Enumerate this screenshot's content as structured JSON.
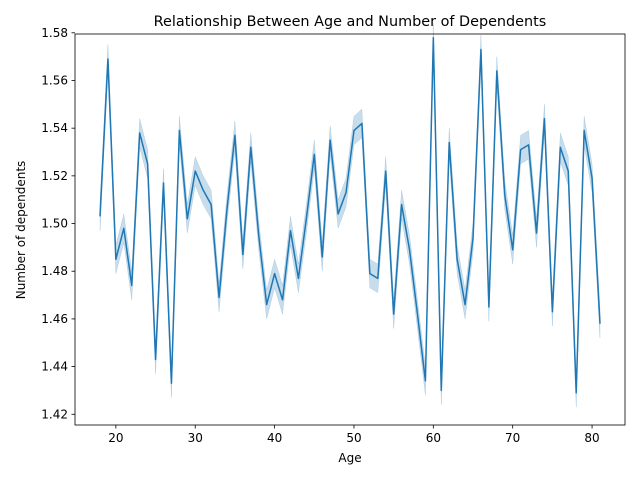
{
  "chart_data": {
    "type": "line",
    "title": "Relationship Between Age and Number of Dependents",
    "xlabel": "Age",
    "ylabel": "Number of dependents",
    "xlim": [
      14.85,
      84.15
    ],
    "ylim": [
      1.4155,
      1.5795
    ],
    "xticks": [
      20,
      30,
      40,
      50,
      60,
      70,
      80
    ],
    "yticks": [
      1.42,
      1.44,
      1.46,
      1.48,
      1.5,
      1.52,
      1.54,
      1.56,
      1.58
    ],
    "ytick_labels": [
      "1.42",
      "1.44",
      "1.46",
      "1.48",
      "1.50",
      "1.52",
      "1.54",
      "1.56",
      "1.58"
    ],
    "grid": false,
    "legend": "none",
    "line_color": "#1f77b4",
    "band_color": "#1f77b4",
    "band_half_width": 0.006,
    "series": [
      {
        "x": [
          18,
          19,
          20,
          21,
          22,
          23,
          24,
          25,
          26,
          27,
          28,
          29,
          30,
          31,
          32,
          33,
          34,
          35,
          36,
          37,
          38,
          39,
          40,
          41,
          42,
          43,
          44,
          45,
          46,
          47,
          48,
          49,
          50,
          51,
          52,
          53,
          54,
          55,
          56,
          57,
          58,
          59,
          60,
          61,
          62,
          63,
          64,
          65,
          66,
          67,
          68,
          69,
          70,
          71,
          72,
          73,
          74,
          75,
          76,
          77,
          78,
          79,
          80,
          81
        ],
        "y": [
          1.503,
          1.569,
          1.485,
          1.498,
          1.474,
          1.538,
          1.525,
          1.443,
          1.517,
          1.433,
          1.539,
          1.502,
          1.522,
          1.514,
          1.508,
          1.469,
          1.506,
          1.537,
          1.487,
          1.532,
          1.495,
          1.466,
          1.479,
          1.468,
          1.497,
          1.477,
          1.502,
          1.529,
          1.486,
          1.535,
          1.504,
          1.513,
          1.539,
          1.542,
          1.479,
          1.477,
          1.522,
          1.462,
          1.508,
          1.489,
          1.462,
          1.434,
          1.578,
          1.43,
          1.534,
          1.485,
          1.466,
          1.494,
          1.573,
          1.465,
          1.564,
          1.512,
          1.489,
          1.531,
          1.533,
          1.496,
          1.544,
          1.463,
          1.532,
          1.522,
          1.429,
          1.539,
          1.519,
          1.458
        ]
      }
    ]
  }
}
